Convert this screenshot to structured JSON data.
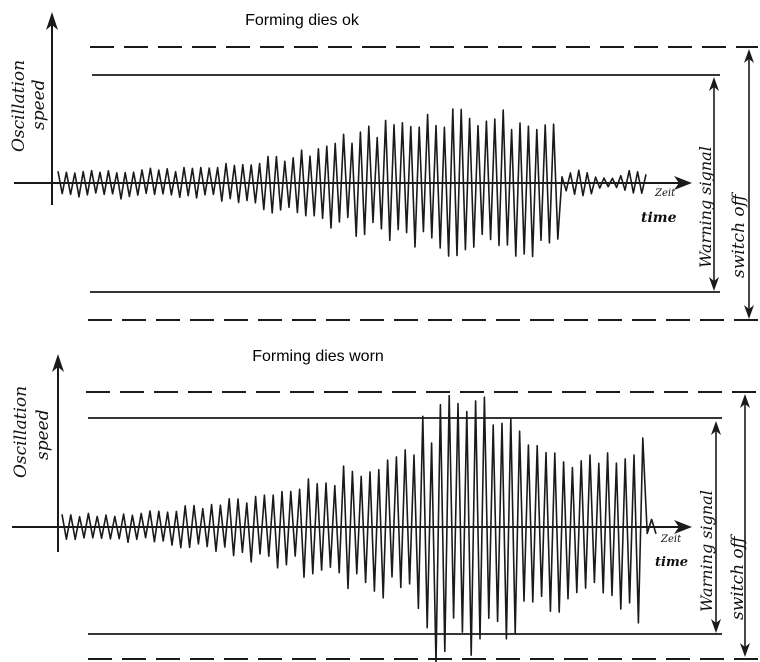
{
  "colors": {
    "ink": "#1a1a1a",
    "paper": "#ffffff"
  },
  "panels": [
    {
      "title": "Forming dies ok",
      "y_axis_label": "Oscillation speed",
      "y_axis_label_line1": "Oscillation",
      "y_axis_label_line2": "speed",
      "time_label_de": "Zeit",
      "time_label_en": "time",
      "warning_label": "Warning signal",
      "switch_label": "switch off"
    },
    {
      "title": "Forming dies worn",
      "y_axis_label": "Oscillation speed",
      "y_axis_label_line1": "Oscillation",
      "y_axis_label_line2": "speed",
      "time_label_de": "Zeit",
      "time_label_en": "time",
      "warning_label": "Warning signal",
      "switch_label": "switch off"
    }
  ]
}
